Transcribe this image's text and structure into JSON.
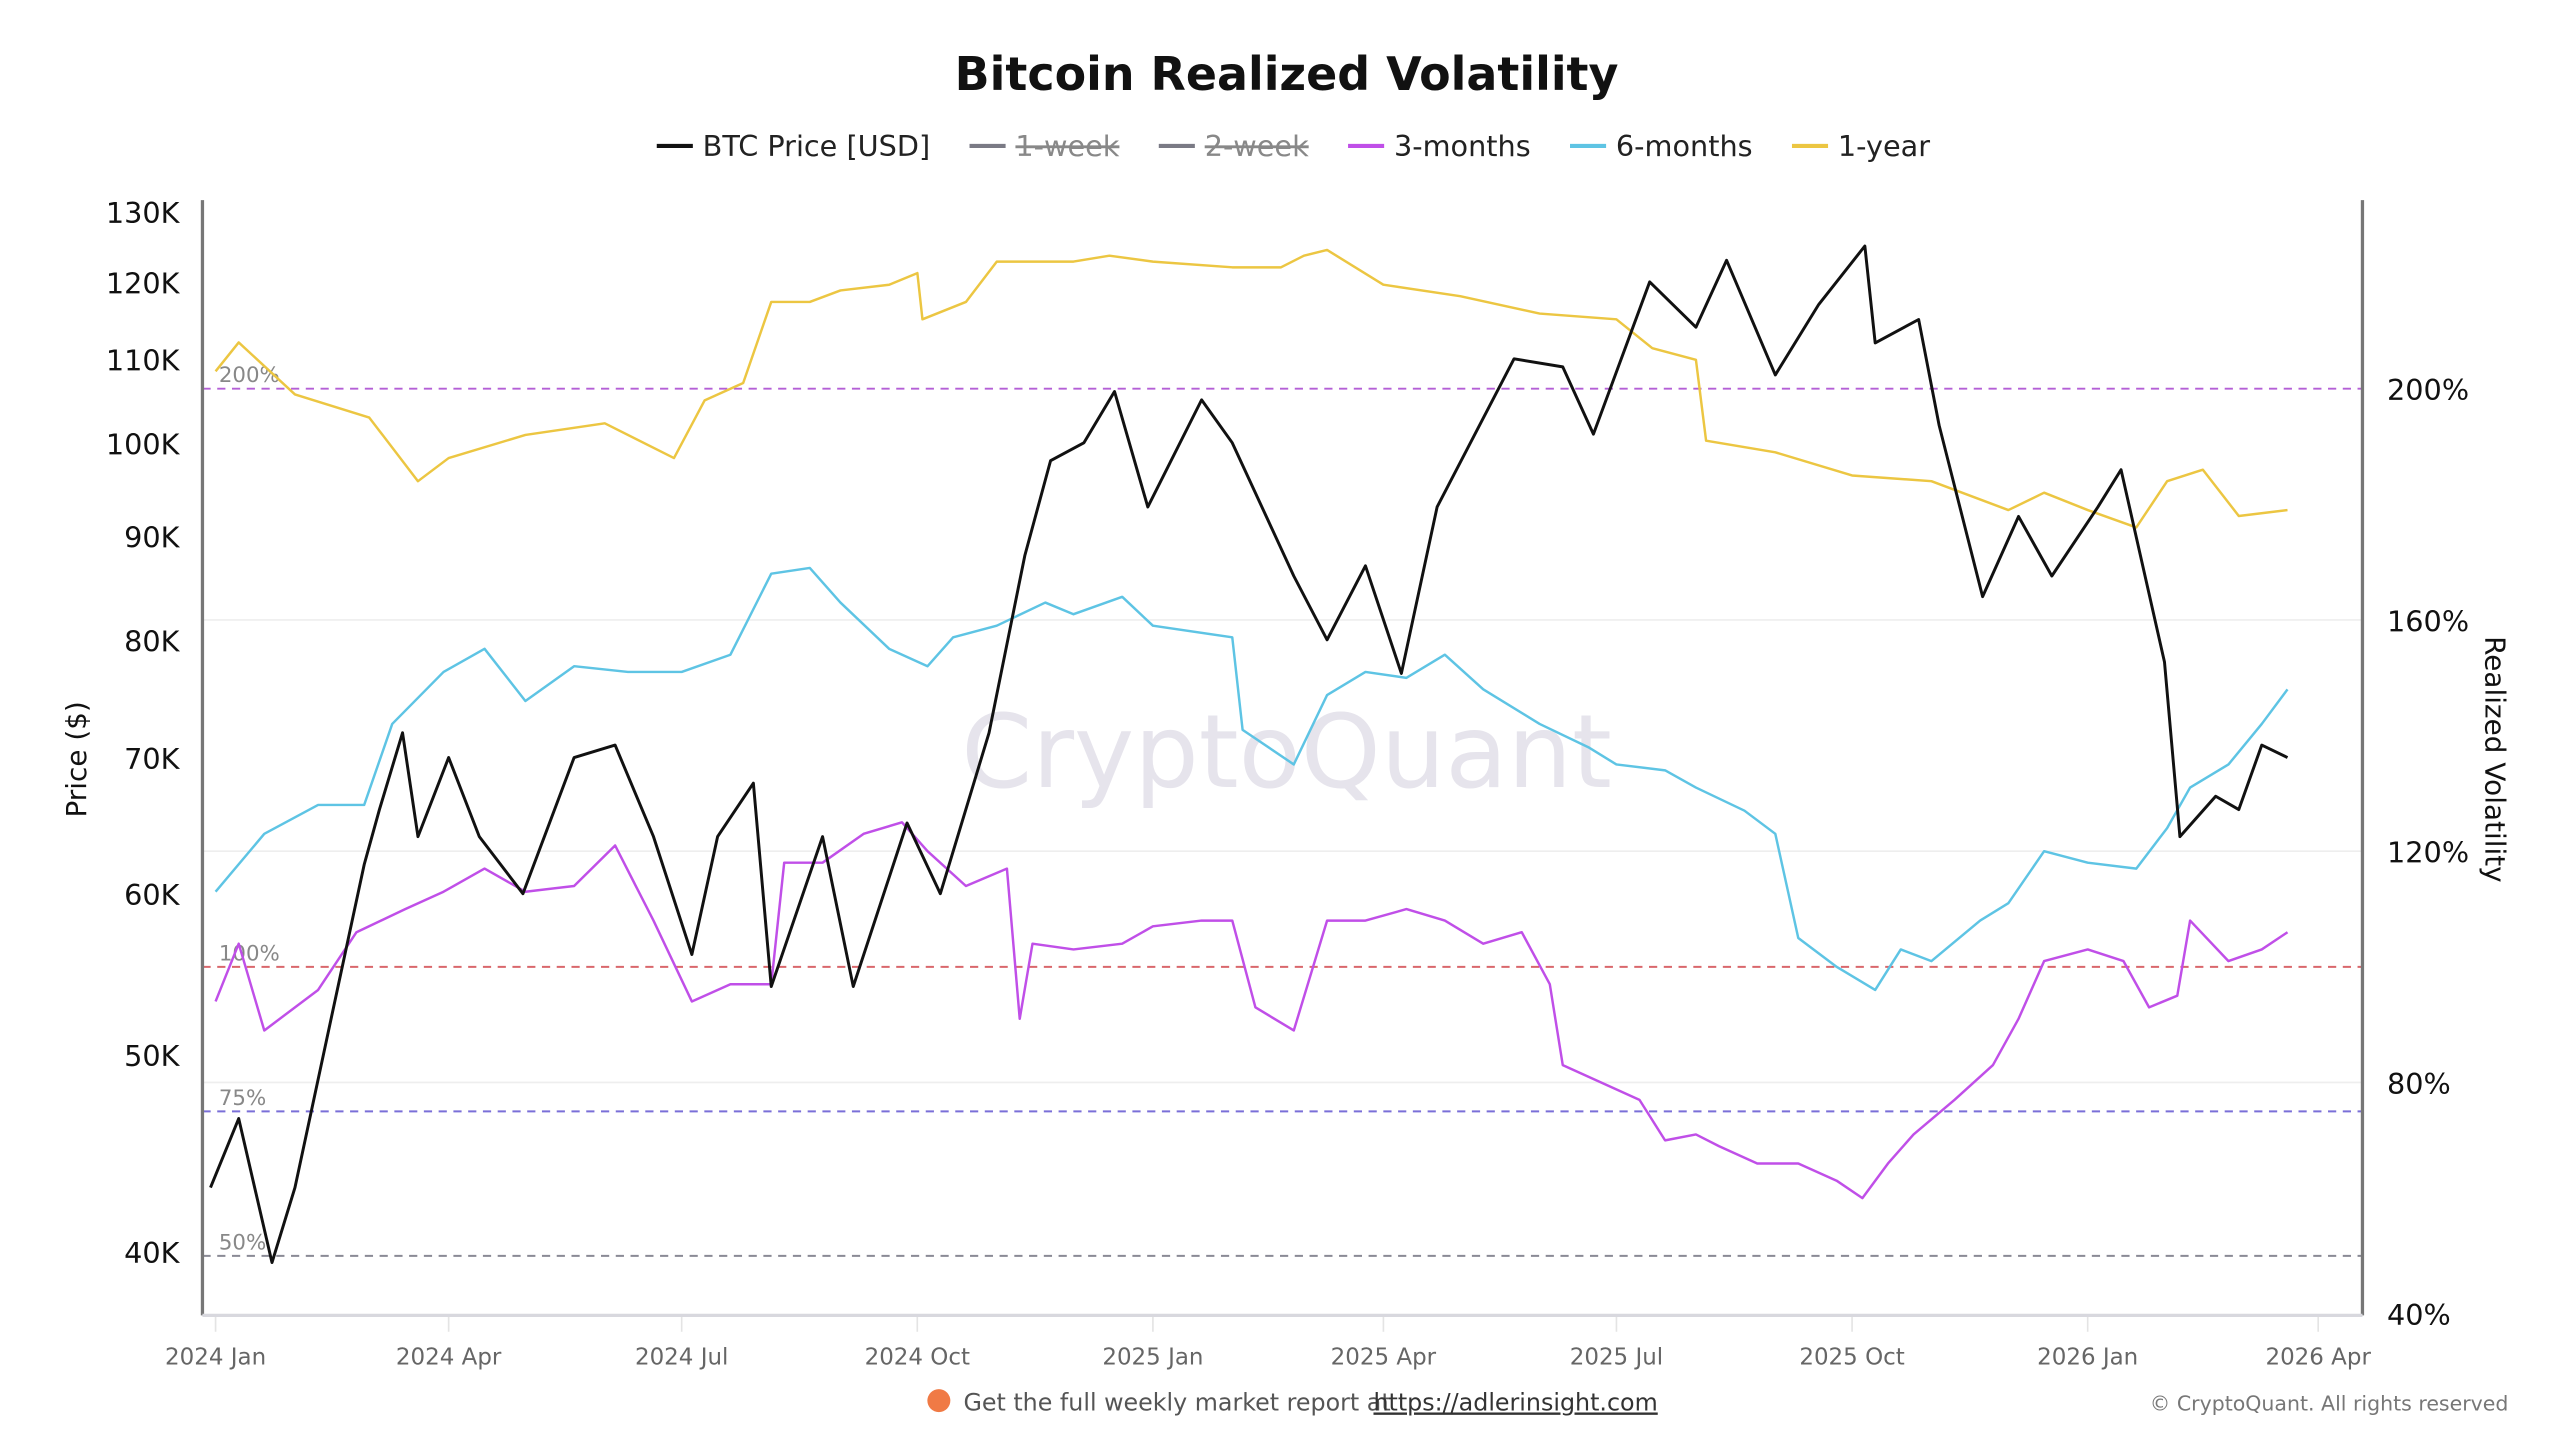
{
  "chart_data": {
    "type": "line",
    "title": "Bitcoin Realized Volatility",
    "legend": [
      {
        "name": "BTC Price [USD]",
        "color": "#111111",
        "hidden": false
      },
      {
        "name": "1-week",
        "color": "#7a7a85",
        "hidden": true
      },
      {
        "name": "2-week",
        "color": "#7a7a85",
        "hidden": true
      },
      {
        "name": "3-months",
        "color": "#c04fe8",
        "hidden": false
      },
      {
        "name": "6-months",
        "color": "#5ec4e4",
        "hidden": false
      },
      {
        "name": "1-year",
        "color": "#ecc642",
        "hidden": false
      }
    ],
    "legend_placement": "top-center",
    "ylabel_left": "Price ($)",
    "ylabel_right": "Realized Volatility",
    "y_left_scale": "log",
    "y_left_range": [
      37000,
      130000
    ],
    "y_left_ticks": [
      "40K",
      "50K",
      "60K",
      "70K",
      "80K",
      "90K",
      "100K",
      "110K",
      "120K",
      "130K"
    ],
    "y_left_tick_values": [
      40000,
      50000,
      60000,
      70000,
      80000,
      90000,
      100000,
      110000,
      120000,
      130000
    ],
    "y_right_range": [
      40,
      220
    ],
    "y_right_ticks": [
      "40%",
      "80%",
      "120%",
      "160%",
      "200%"
    ],
    "y_right_tick_values": [
      40,
      80,
      120,
      160,
      200
    ],
    "x_ticks": [
      "2024 Jan",
      "2024 Apr",
      "2024 Jul",
      "2024 Oct",
      "2025 Jan",
      "2025 Apr",
      "2025 Jul",
      "2025 Oct",
      "2026 Jan",
      "2026 Apr"
    ],
    "x_tick_dates": [
      "2024-01-01",
      "2024-04-01",
      "2024-07-01",
      "2024-10-01",
      "2025-01-01",
      "2025-04-01",
      "2025-07-01",
      "2025-10-01",
      "2026-01-01",
      "2026-04-01"
    ],
    "x_range": [
      "2023-12-27",
      "2026-04-20"
    ],
    "reference_lines": [
      {
        "label": "200%",
        "value": 200,
        "color": "#b45fd6"
      },
      {
        "label": "100%",
        "value": 100,
        "color": "#d9676c"
      },
      {
        "label": "75%",
        "value": 75,
        "color": "#7a6fd8"
      },
      {
        "label": "50%",
        "value": 50,
        "color": "#8a8a95"
      }
    ],
    "grid": true,
    "series": [
      {
        "name": "BTC Price [USD]",
        "axis": "left",
        "color": "#111111",
        "points": [
          [
            "2023-12-30",
            43000
          ],
          [
            "2024-01-10",
            46500
          ],
          [
            "2024-01-23",
            39500
          ],
          [
            "2024-02-01",
            43000
          ],
          [
            "2024-02-15",
            52000
          ],
          [
            "2024-02-28",
            62000
          ],
          [
            "2024-03-05",
            66000
          ],
          [
            "2024-03-14",
            72000
          ],
          [
            "2024-03-20",
            64000
          ],
          [
            "2024-04-01",
            70000
          ],
          [
            "2024-04-13",
            64000
          ],
          [
            "2024-04-30",
            60000
          ],
          [
            "2024-05-20",
            70000
          ],
          [
            "2024-06-05",
            71000
          ],
          [
            "2024-06-20",
            64000
          ],
          [
            "2024-07-05",
            56000
          ],
          [
            "2024-07-15",
            64000
          ],
          [
            "2024-07-29",
            68000
          ],
          [
            "2024-08-05",
            54000
          ],
          [
            "2024-08-25",
            64000
          ],
          [
            "2024-09-06",
            54000
          ],
          [
            "2024-09-27",
            65000
          ],
          [
            "2024-10-10",
            60000
          ],
          [
            "2024-10-29",
            72000
          ],
          [
            "2024-11-12",
            88000
          ],
          [
            "2024-11-22",
            98000
          ],
          [
            "2024-12-05",
            100000
          ],
          [
            "2024-12-17",
            106000
          ],
          [
            "2024-12-30",
            93000
          ],
          [
            "2025-01-20",
            105000
          ],
          [
            "2025-02-01",
            100000
          ],
          [
            "2025-02-25",
            86000
          ],
          [
            "2025-03-10",
            80000
          ],
          [
            "2025-03-25",
            87000
          ],
          [
            "2025-04-08",
            77000
          ],
          [
            "2025-04-22",
            93000
          ],
          [
            "2025-05-22",
            110000
          ],
          [
            "2025-06-10",
            109000
          ],
          [
            "2025-06-22",
            101000
          ],
          [
            "2025-07-14",
            120000
          ],
          [
            "2025-08-01",
            114000
          ],
          [
            "2025-08-13",
            123000
          ],
          [
            "2025-09-01",
            108000
          ],
          [
            "2025-09-18",
            117000
          ],
          [
            "2025-10-06",
            125000
          ],
          [
            "2025-10-10",
            112000
          ],
          [
            "2025-10-27",
            115000
          ],
          [
            "2025-11-04",
            102000
          ],
          [
            "2025-11-21",
            84000
          ],
          [
            "2025-12-05",
            92000
          ],
          [
            "2025-12-18",
            86000
          ],
          [
            "2026-01-05",
            93000
          ],
          [
            "2026-01-14",
            97000
          ],
          [
            "2026-01-31",
            78000
          ],
          [
            "2026-02-06",
            64000
          ],
          [
            "2026-02-20",
            67000
          ],
          [
            "2026-03-01",
            66000
          ],
          [
            "2026-03-10",
            71000
          ],
          [
            "2026-03-20",
            70000
          ]
        ]
      },
      {
        "name": "3-months",
        "axis": "right",
        "color": "#c04fe8",
        "points": [
          [
            "2024-01-01",
            94
          ],
          [
            "2024-01-10",
            104
          ],
          [
            "2024-01-20",
            89
          ],
          [
            "2024-02-10",
            96
          ],
          [
            "2024-02-25",
            106
          ],
          [
            "2024-03-15",
            110
          ],
          [
            "2024-03-30",
            113
          ],
          [
            "2024-04-15",
            117
          ],
          [
            "2024-05-01",
            113
          ],
          [
            "2024-05-20",
            114
          ],
          [
            "2024-06-05",
            121
          ],
          [
            "2024-06-20",
            108
          ],
          [
            "2024-07-05",
            94
          ],
          [
            "2024-07-20",
            97
          ],
          [
            "2024-08-05",
            97
          ],
          [
            "2024-08-10",
            118
          ],
          [
            "2024-08-25",
            118
          ],
          [
            "2024-09-10",
            123
          ],
          [
            "2024-09-25",
            125
          ],
          [
            "2024-10-05",
            120
          ],
          [
            "2024-10-20",
            114
          ],
          [
            "2024-11-05",
            117
          ],
          [
            "2024-11-10",
            91
          ],
          [
            "2024-11-15",
            104
          ],
          [
            "2024-12-01",
            103
          ],
          [
            "2024-12-20",
            104
          ],
          [
            "2025-01-01",
            107
          ],
          [
            "2025-01-20",
            108
          ],
          [
            "2025-02-01",
            108
          ],
          [
            "2025-02-10",
            93
          ],
          [
            "2025-02-25",
            89
          ],
          [
            "2025-03-10",
            108
          ],
          [
            "2025-03-25",
            108
          ],
          [
            "2025-04-10",
            110
          ],
          [
            "2025-04-25",
            108
          ],
          [
            "2025-05-10",
            104
          ],
          [
            "2025-05-25",
            106
          ],
          [
            "2025-06-05",
            97
          ],
          [
            "2025-06-10",
            83
          ],
          [
            "2025-06-25",
            80
          ],
          [
            "2025-07-10",
            77
          ],
          [
            "2025-07-20",
            70
          ],
          [
            "2025-08-01",
            71
          ],
          [
            "2025-08-10",
            69
          ],
          [
            "2025-08-25",
            66
          ],
          [
            "2025-09-10",
            66
          ],
          [
            "2025-09-25",
            63
          ],
          [
            "2025-10-05",
            60
          ],
          [
            "2025-10-15",
            66
          ],
          [
            "2025-10-25",
            71
          ],
          [
            "2025-11-10",
            77
          ],
          [
            "2025-11-25",
            83
          ],
          [
            "2025-12-05",
            91
          ],
          [
            "2025-12-15",
            101
          ],
          [
            "2026-01-01",
            103
          ],
          [
            "2026-01-15",
            101
          ],
          [
            "2026-01-25",
            93
          ],
          [
            "2026-02-05",
            95
          ],
          [
            "2026-02-10",
            108
          ],
          [
            "2026-02-25",
            101
          ],
          [
            "2026-03-10",
            103
          ],
          [
            "2026-03-20",
            106
          ]
        ]
      },
      {
        "name": "6-months",
        "axis": "right",
        "color": "#5ec4e4",
        "points": [
          [
            "2024-01-01",
            113
          ],
          [
            "2024-01-20",
            123
          ],
          [
            "2024-02-10",
            128
          ],
          [
            "2024-02-28",
            128
          ],
          [
            "2024-03-10",
            142
          ],
          [
            "2024-03-30",
            151
          ],
          [
            "2024-04-15",
            155
          ],
          [
            "2024-05-01",
            146
          ],
          [
            "2024-05-20",
            152
          ],
          [
            "2024-06-10",
            151
          ],
          [
            "2024-07-01",
            151
          ],
          [
            "2024-07-20",
            154
          ],
          [
            "2024-08-05",
            168
          ],
          [
            "2024-08-20",
            169
          ],
          [
            "2024-09-01",
            163
          ],
          [
            "2024-09-20",
            155
          ],
          [
            "2024-10-05",
            152
          ],
          [
            "2024-10-15",
            157
          ],
          [
            "2024-11-01",
            159
          ],
          [
            "2024-11-20",
            163
          ],
          [
            "2024-12-01",
            161
          ],
          [
            "2024-12-20",
            164
          ],
          [
            "2025-01-01",
            159
          ],
          [
            "2025-02-01",
            157
          ],
          [
            "2025-02-05",
            141
          ],
          [
            "2025-02-25",
            135
          ],
          [
            "2025-03-10",
            147
          ],
          [
            "2025-03-25",
            151
          ],
          [
            "2025-04-10",
            150
          ],
          [
            "2025-04-25",
            154
          ],
          [
            "2025-05-10",
            148
          ],
          [
            "2025-06-01",
            142
          ],
          [
            "2025-06-20",
            138
          ],
          [
            "2025-07-01",
            135
          ],
          [
            "2025-07-20",
            134
          ],
          [
            "2025-08-01",
            131
          ],
          [
            "2025-08-20",
            127
          ],
          [
            "2025-09-01",
            123
          ],
          [
            "2025-09-10",
            105
          ],
          [
            "2025-09-25",
            100
          ],
          [
            "2025-10-10",
            96
          ],
          [
            "2025-10-20",
            103
          ],
          [
            "2025-11-01",
            101
          ],
          [
            "2025-11-20",
            108
          ],
          [
            "2025-12-01",
            111
          ],
          [
            "2025-12-15",
            120
          ],
          [
            "2026-01-01",
            118
          ],
          [
            "2026-01-20",
            117
          ],
          [
            "2026-02-01",
            124
          ],
          [
            "2026-02-10",
            131
          ],
          [
            "2026-02-25",
            135
          ],
          [
            "2026-03-10",
            142
          ],
          [
            "2026-03-20",
            148
          ]
        ]
      },
      {
        "name": "1-year",
        "axis": "right",
        "color": "#ecc642",
        "points": [
          [
            "2024-01-01",
            203
          ],
          [
            "2024-01-10",
            208
          ],
          [
            "2024-02-01",
            199
          ],
          [
            "2024-03-01",
            195
          ],
          [
            "2024-03-20",
            184
          ],
          [
            "2024-04-01",
            188
          ],
          [
            "2024-05-01",
            192
          ],
          [
            "2024-06-01",
            194
          ],
          [
            "2024-06-28",
            188
          ],
          [
            "2024-07-10",
            198
          ],
          [
            "2024-07-25",
            201
          ],
          [
            "2024-08-05",
            215
          ],
          [
            "2024-08-20",
            215
          ],
          [
            "2024-09-01",
            217
          ],
          [
            "2024-09-20",
            218
          ],
          [
            "2024-10-01",
            220
          ],
          [
            "2024-10-03",
            212
          ],
          [
            "2024-10-20",
            215
          ],
          [
            "2024-11-01",
            222
          ],
          [
            "2024-12-01",
            222
          ],
          [
            "2024-12-15",
            223
          ],
          [
            "2025-01-01",
            222
          ],
          [
            "2025-02-01",
            221
          ],
          [
            "2025-02-20",
            221
          ],
          [
            "2025-03-01",
            223
          ],
          [
            "2025-03-10",
            224
          ],
          [
            "2025-04-01",
            218
          ],
          [
            "2025-05-01",
            216
          ],
          [
            "2025-06-01",
            213
          ],
          [
            "2025-07-01",
            212
          ],
          [
            "2025-07-15",
            207
          ],
          [
            "2025-08-01",
            205
          ],
          [
            "2025-08-05",
            191
          ],
          [
            "2025-09-01",
            189
          ],
          [
            "2025-10-01",
            185
          ],
          [
            "2025-11-01",
            184
          ],
          [
            "2025-12-01",
            179
          ],
          [
            "2025-12-15",
            182
          ],
          [
            "2026-01-01",
            179
          ],
          [
            "2026-01-20",
            176
          ],
          [
            "2026-02-01",
            184
          ],
          [
            "2026-02-15",
            186
          ],
          [
            "2026-03-01",
            178
          ],
          [
            "2026-03-20",
            179
          ]
        ]
      }
    ]
  },
  "watermark": "CryptoQuant",
  "footer": {
    "promo_text": "Get the full weekly market report at",
    "promo_link": "https://adlerinsight.com",
    "copyright": "© CryptoQuant. All rights reserved"
  }
}
